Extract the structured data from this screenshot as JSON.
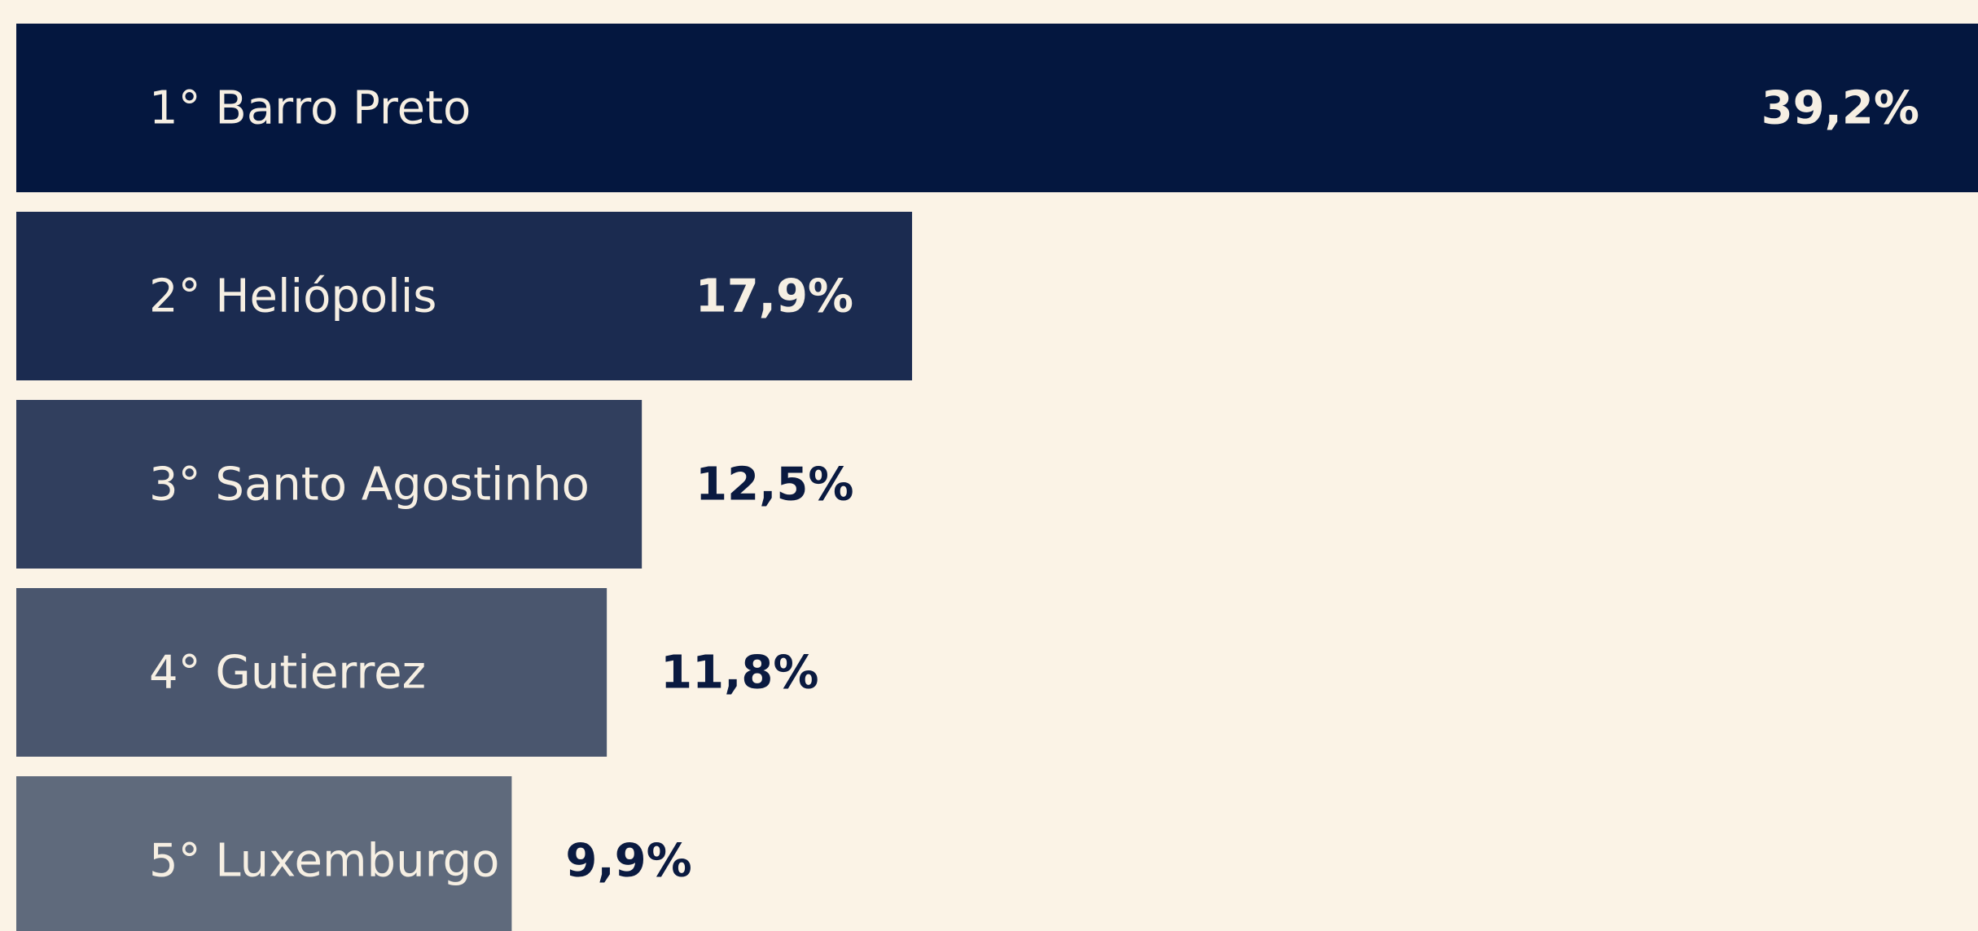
{
  "chart_data": {
    "type": "hbar",
    "categories": [
      "1° Barro Preto",
      "2° Heliópolis",
      "3° Santo Agostinho",
      "4° Gutierrez",
      "5° Luxemburgo"
    ],
    "values": [
      39.2,
      17.9,
      12.5,
      11.8,
      9.9
    ],
    "value_labels": [
      "39,2%",
      "17,9%",
      "12,5%",
      "11,8%",
      "9,9%"
    ],
    "colors": [
      "#04173f",
      "#1b2b50",
      "#313f5e",
      "#4a566e",
      "#5f6a7c"
    ],
    "xlim": [
      0,
      39.2
    ]
  }
}
